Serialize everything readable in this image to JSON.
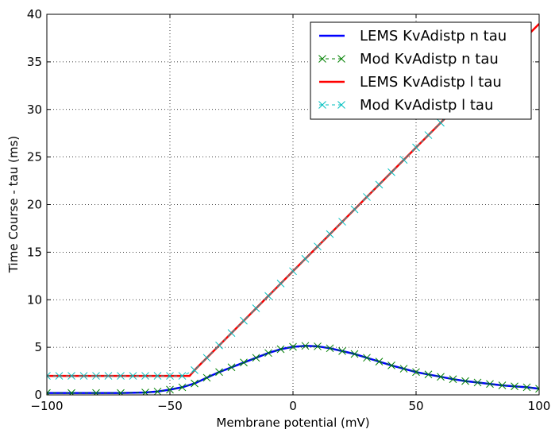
{
  "chart_data": {
    "type": "line",
    "title": "",
    "xlabel": "Membrane potential (mV)",
    "ylabel": "Time Course - tau (ms)",
    "xlim": [
      -100,
      100
    ],
    "ylim": [
      0,
      40
    ],
    "xticks": [
      -100,
      -50,
      0,
      50,
      100
    ],
    "xtick_labels": [
      "−100",
      "−50",
      "0",
      "50",
      "100"
    ],
    "yticks": [
      0,
      5,
      10,
      15,
      20,
      25,
      30,
      35,
      40
    ],
    "ytick_labels": [
      "0",
      "5",
      "10",
      "15",
      "20",
      "25",
      "30",
      "35",
      "40"
    ],
    "grid": true,
    "legend_position": "top-right",
    "series": [
      {
        "name": "LEMS KvAdistp n tau",
        "color": "#0000ff",
        "style": "solid-line",
        "x": [
          -100,
          -90,
          -80,
          -70,
          -60,
          -55,
          -50,
          -45,
          -40,
          -35,
          -30,
          -25,
          -20,
          -15,
          -10,
          -5,
          0,
          5,
          10,
          15,
          20,
          25,
          30,
          35,
          40,
          45,
          50,
          55,
          60,
          65,
          70,
          75,
          80,
          85,
          90,
          95,
          100
        ],
        "y": [
          0.2,
          0.2,
          0.2,
          0.2,
          0.25,
          0.35,
          0.55,
          0.8,
          1.2,
          1.8,
          2.4,
          2.9,
          3.4,
          3.9,
          4.4,
          4.8,
          5.05,
          5.15,
          5.1,
          4.9,
          4.6,
          4.3,
          3.9,
          3.5,
          3.1,
          2.75,
          2.4,
          2.15,
          1.9,
          1.65,
          1.45,
          1.3,
          1.15,
          1.0,
          0.9,
          0.8,
          0.65
        ]
      },
      {
        "name": "Mod KvAdistp n tau",
        "color": "#008000",
        "style": "x-markers",
        "x": [
          -100,
          -90,
          -80,
          -70,
          -60,
          -55,
          -50,
          -45,
          -40,
          -35,
          -30,
          -25,
          -20,
          -15,
          -10,
          -5,
          0,
          5,
          10,
          15,
          20,
          25,
          30,
          35,
          40,
          45,
          50,
          55,
          60,
          65,
          70,
          75,
          80,
          85,
          90,
          95,
          100
        ],
        "y": [
          0.2,
          0.2,
          0.2,
          0.2,
          0.25,
          0.35,
          0.55,
          0.8,
          1.2,
          1.8,
          2.4,
          2.9,
          3.4,
          3.9,
          4.4,
          4.8,
          5.05,
          5.15,
          5.1,
          4.9,
          4.6,
          4.3,
          3.9,
          3.5,
          3.1,
          2.75,
          2.4,
          2.15,
          1.9,
          1.65,
          1.45,
          1.3,
          1.15,
          1.0,
          0.9,
          0.8,
          0.65
        ]
      },
      {
        "name": "LEMS KvAdistp l tau",
        "color": "#ff0000",
        "style": "solid-line",
        "x": [
          -100,
          -90,
          -80,
          -70,
          -60,
          -50,
          -42,
          -40,
          -30,
          -20,
          -10,
          0,
          10,
          20,
          30,
          40,
          50,
          60,
          70,
          80,
          90,
          100
        ],
        "y": [
          2,
          2,
          2,
          2,
          2,
          2,
          2,
          2.6,
          5.2,
          7.8,
          10.4,
          13,
          15.6,
          18.2,
          20.8,
          23.4,
          26,
          28.6,
          31.2,
          33.8,
          36.4,
          39
        ]
      },
      {
        "name": "Mod KvAdistp l tau",
        "color": "#00bfbf",
        "style": "x-markers",
        "x": [
          -100,
          -95,
          -90,
          -85,
          -80,
          -75,
          -70,
          -65,
          -60,
          -55,
          -50,
          -45,
          -40,
          -35,
          -30,
          -25,
          -20,
          -15,
          -10,
          -5,
          0,
          5,
          10,
          15,
          20,
          25,
          30,
          35,
          40,
          45,
          50,
          55,
          60
        ],
        "y": [
          2,
          2,
          2,
          2,
          2,
          2,
          2,
          2,
          2,
          2,
          2,
          2,
          2.6,
          3.9,
          5.2,
          6.5,
          7.8,
          9.1,
          10.4,
          11.7,
          13,
          14.3,
          15.6,
          16.9,
          18.2,
          19.5,
          20.8,
          22.1,
          23.4,
          24.7,
          26,
          27.3,
          28.6
        ]
      }
    ]
  }
}
